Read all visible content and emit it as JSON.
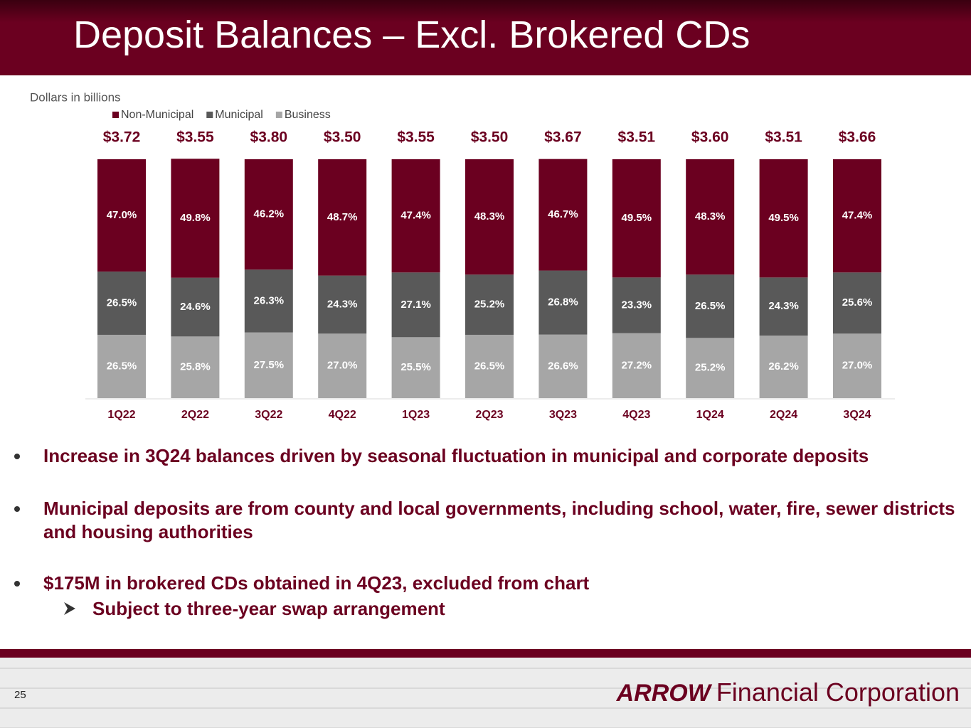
{
  "title": "Deposit Balances – Excl. Brokered CDs",
  "chart_data": {
    "type": "stacked_bar",
    "subtitle": "Dollars in billions",
    "categories": [
      "1Q22",
      "2Q22",
      "3Q22",
      "4Q22",
      "1Q23",
      "2Q23",
      "3Q23",
      "4Q23",
      "1Q24",
      "2Q24",
      "3Q24"
    ],
    "series": [
      {
        "name": "Business",
        "color": "#a6a6a6",
        "values": [
          26.5,
          25.8,
          27.5,
          27.0,
          25.5,
          26.5,
          26.6,
          27.2,
          25.2,
          26.2,
          27.0
        ],
        "value_labels": [
          "26.5%",
          "25.8%",
          "27.5%",
          "27.0%",
          "25.5%",
          "26.5%",
          "26.6%",
          "27.2%",
          "25.2%",
          "26.2%",
          "27.0%"
        ]
      },
      {
        "name": "Municipal",
        "color": "#595959",
        "values": [
          26.5,
          24.6,
          26.3,
          24.3,
          27.1,
          25.2,
          26.8,
          23.3,
          26.5,
          24.3,
          25.6
        ],
        "value_labels": [
          "26.5%",
          "24.6%",
          "26.3%",
          "24.3%",
          "27.1%",
          "25.2%",
          "26.8%",
          "23.3%",
          "26.5%",
          "24.3%",
          "25.6%"
        ]
      },
      {
        "name": "Non-Municipal",
        "color": "#6b0020",
        "values": [
          47.0,
          49.8,
          46.2,
          48.7,
          47.4,
          48.3,
          46.7,
          49.5,
          48.3,
          49.5,
          47.4
        ],
        "value_labels": [
          "47.0%",
          "49.8%",
          "46.2%",
          "48.7%",
          "47.4%",
          "48.3%",
          "46.7%",
          "49.5%",
          "48.3%",
          "49.5%",
          "47.4%"
        ]
      }
    ],
    "totals": {
      "values": [
        3.72,
        3.55,
        3.8,
        3.5,
        3.55,
        3.5,
        3.67,
        3.51,
        3.6,
        3.51,
        3.66
      ],
      "value_labels": [
        "$3.72",
        "$3.55",
        "$3.80",
        "$3.50",
        "$3.55",
        "$3.50",
        "$3.67",
        "$3.51",
        "$3.60",
        "$3.51",
        "$3.66"
      ]
    },
    "ylim": [
      0,
      100
    ],
    "legend": "top-left"
  },
  "bullets": [
    {
      "text": "Increase in 3Q24 balances driven by seasonal fluctuation in municipal and corporate deposits"
    },
    {
      "text": "Municipal deposits are from county and local governments, including school, water, fire, sewer districts and housing authorities"
    },
    {
      "text": "$175M in brokered CDs obtained in 4Q23, excluded from chart",
      "sub": "Subject to three-year swap arrangement"
    }
  ],
  "footer": {
    "page": "25",
    "logo_mark": "ARROW",
    "logo_text": "Financial Corporation"
  }
}
